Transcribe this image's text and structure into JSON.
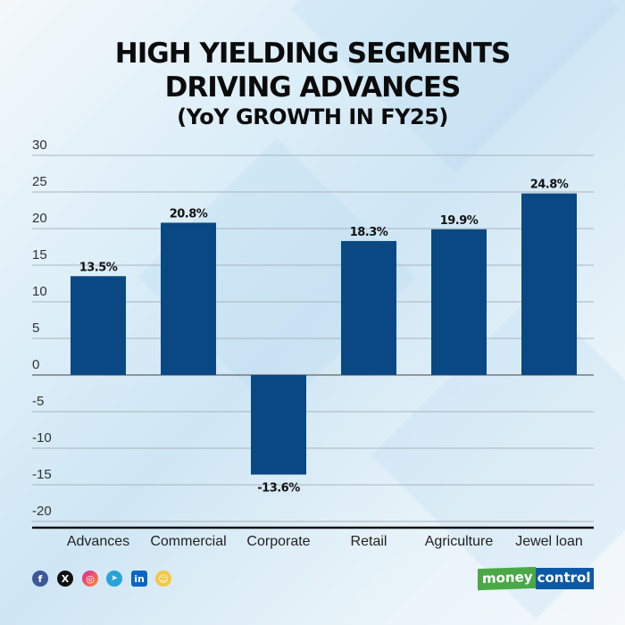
{
  "chart_data": {
    "type": "bar",
    "title": "HIGH YIELDING SEGMENTS",
    "title_line2": "DRIVING ADVANCES",
    "subtitle": "(YoY GROWTH IN FY25)",
    "xlabel": "",
    "ylabel": "",
    "categories": [
      "Advances",
      "Commercial",
      "Corporate",
      "Retail",
      "Agriculture",
      "Jewel loan"
    ],
    "values": [
      13.5,
      20.8,
      -13.6,
      18.3,
      19.9,
      24.8
    ],
    "data_labels": [
      "13.5%",
      "20.8%",
      "-13.6%",
      "18.3%",
      "19.9%",
      "24.8%"
    ],
    "ylim": [
      -20,
      30
    ],
    "yticks": [
      30,
      25,
      20,
      15,
      10,
      5,
      0,
      -5,
      -10,
      -15,
      -20
    ],
    "ytick_labels": [
      "30",
      "25",
      "20",
      "15",
      "10",
      "5",
      "0",
      "-5",
      "-10",
      "-15",
      "-20"
    ],
    "grid": true,
    "bar_color": "#0a4884"
  },
  "footer": {
    "social_icons": [
      "facebook-icon",
      "x-icon",
      "instagram-icon",
      "telegram-icon",
      "linkedin-icon",
      "snapchat-icon"
    ],
    "facebook_glyph": "f",
    "x_glyph": "X",
    "instagram_glyph": "◎",
    "telegram_glyph": "➤",
    "linkedin_glyph": "in",
    "snapchat_glyph": "☺",
    "logo_left": "money",
    "logo_right": "control"
  }
}
